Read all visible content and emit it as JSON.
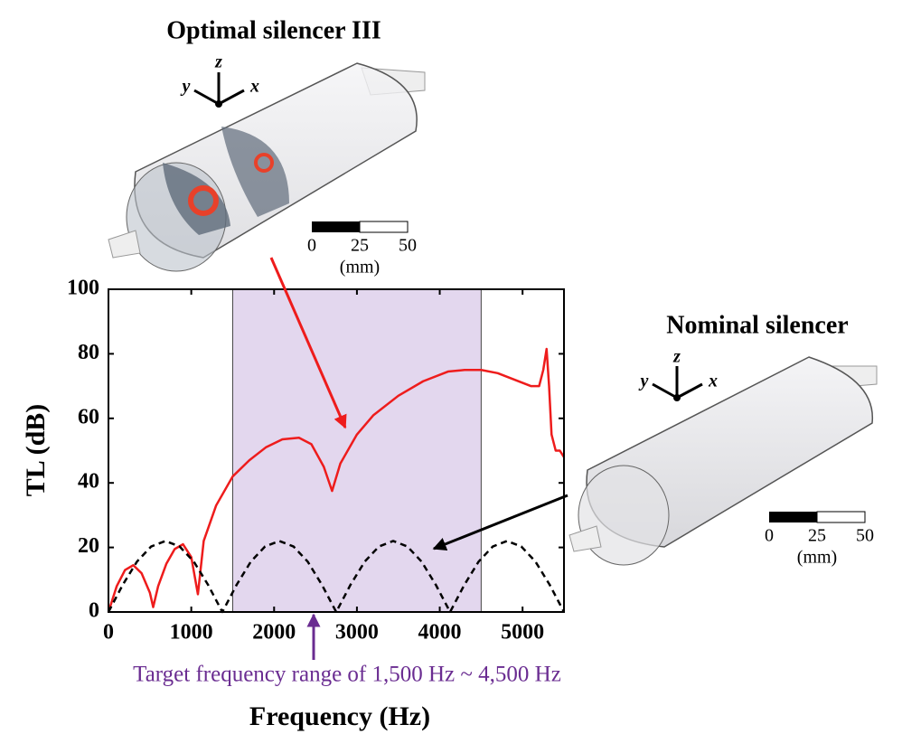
{
  "chart_data": {
    "type": "line",
    "xlabel": "Frequency (Hz)",
    "ylabel": "TL (dB)",
    "xlim": [
      0,
      5500
    ],
    "ylim": [
      0,
      100
    ],
    "xticks": [
      0,
      1000,
      2000,
      3000,
      4000,
      5000
    ],
    "yticks": [
      0,
      20,
      40,
      60,
      80,
      100
    ],
    "highlight": [
      1500,
      4500
    ],
    "highlight_color": "#e3d7ee",
    "annotation": "Target frequency range of 1,500 Hz ~ 4,500 Hz",
    "series": [
      {
        "color": "#ee1c1c",
        "dash": false,
        "x": [
          0,
          100,
          200,
          300,
          400,
          500,
          540,
          600,
          700,
          800,
          900,
          1000,
          1080,
          1150,
          1300,
          1500,
          1700,
          1900,
          2100,
          2300,
          2450,
          2600,
          2700,
          2800,
          3000,
          3200,
          3500,
          3800,
          4100,
          4300,
          4500,
          4700,
          4900,
          5100,
          5200,
          5250,
          5290,
          5320,
          5350,
          5400,
          5450,
          5500
        ],
        "values": [
          0,
          8,
          13,
          14.5,
          12,
          6,
          1.5,
          8,
          15,
          19.5,
          21,
          17,
          5.5,
          22,
          33,
          42,
          47,
          51,
          53.5,
          54,
          52,
          45,
          37.5,
          46,
          55,
          61,
          67,
          71.5,
          74.5,
          75,
          75,
          74,
          72,
          70,
          70,
          75,
          81.5,
          70,
          55,
          50,
          50,
          48
        ]
      },
      {
        "color": "#000000",
        "dash": true,
        "x": [
          0,
          172,
          344,
          516,
          688,
          859,
          1031,
          1203,
          1375,
          1547,
          1719,
          1891,
          2063,
          2234,
          2406,
          2578,
          2750,
          2922,
          3094,
          3266,
          3438,
          3609,
          3781,
          3953,
          4125,
          4297,
          4469,
          4641,
          4813,
          4984,
          5156,
          5328,
          5500
        ],
        "values": [
          0,
          8.4,
          15.6,
          20.3,
          22,
          20.3,
          15.6,
          8.4,
          0,
          8.4,
          15.6,
          20.3,
          22,
          20.3,
          15.6,
          8.4,
          0,
          8.4,
          15.6,
          20.3,
          22,
          20.3,
          15.6,
          8.4,
          0,
          8.4,
          15.6,
          20.3,
          22,
          20.3,
          15.6,
          8.4,
          0
        ]
      }
    ]
  },
  "illustrations": [
    {
      "title": "Optimal silencer III",
      "axes": [
        "y",
        "z",
        "x"
      ],
      "scale": [
        "0",
        "25",
        "50",
        "(mm)"
      ]
    },
    {
      "title": "Nominal silencer",
      "axes": [
        "y",
        "z",
        "x"
      ],
      "scale": [
        "0",
        "25",
        "50",
        "(mm)"
      ]
    }
  ]
}
